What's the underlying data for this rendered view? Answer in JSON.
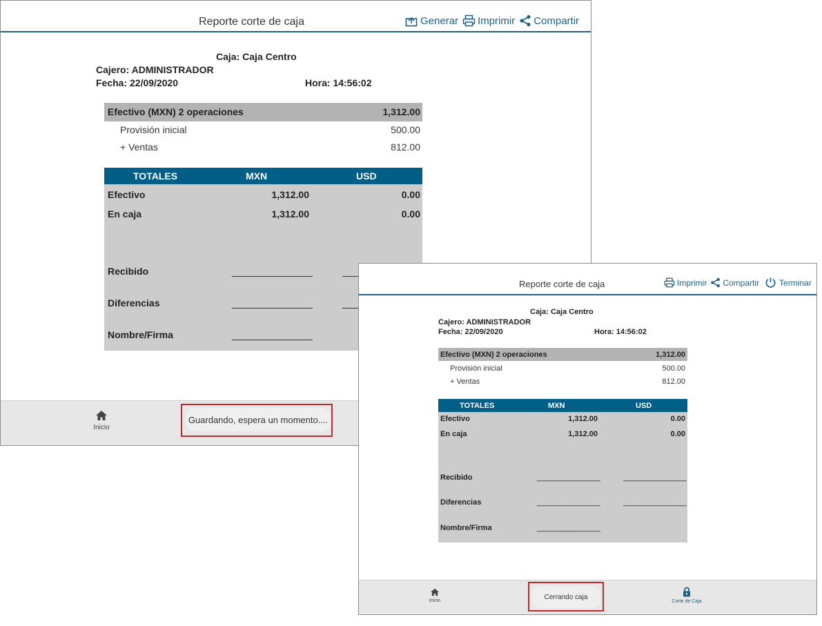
{
  "report": {
    "title": "Reporte corte de caja",
    "caja": "Caja: Caja Centro",
    "cajero": "Cajero: ADMINISTRADOR",
    "fecha": "Fecha: 22/09/2020",
    "hora": "Hora: 14:56:02",
    "efectivo_header": "Efectivo (MXN) 2 operaciones",
    "efectivo_total": "1,312.00",
    "rows": [
      {
        "label": "Provisión inicial",
        "value": "500.00"
      },
      {
        "label": "+ Ventas",
        "value": "812.00"
      }
    ],
    "totals": {
      "headers": [
        "TOTALES",
        "MXN",
        "USD"
      ],
      "rows": [
        {
          "label": "Efectivo",
          "mxn": "1,312.00",
          "usd": "0.00"
        },
        {
          "label": "En caja",
          "mxn": "1,312.00",
          "usd": "0.00"
        }
      ]
    },
    "sign_rows": [
      "Recibido",
      "Diferencias",
      "Nombre/Firma"
    ],
    "sign_line": "_______________"
  },
  "window1": {
    "actions": {
      "generar": "Generar",
      "imprimir": "Imprimir",
      "compartir": "Compartir"
    },
    "footer": {
      "inicio": "Inicio",
      "toast": "Guardando, espera un momento...."
    }
  },
  "window2": {
    "actions": {
      "imprimir": "Imprimir",
      "compartir": "Compartir",
      "terminar": "Terminar"
    },
    "footer": {
      "inicio": "Inicio",
      "toast": "Cerrando caja",
      "corte": "Corte de Caja"
    }
  },
  "colors": {
    "accent": "#1d5f86",
    "table_header": "#005e87",
    "table_bg": "#cccccc",
    "efectivo_bar": "#b3b3b3",
    "highlight": "#c0282e"
  }
}
